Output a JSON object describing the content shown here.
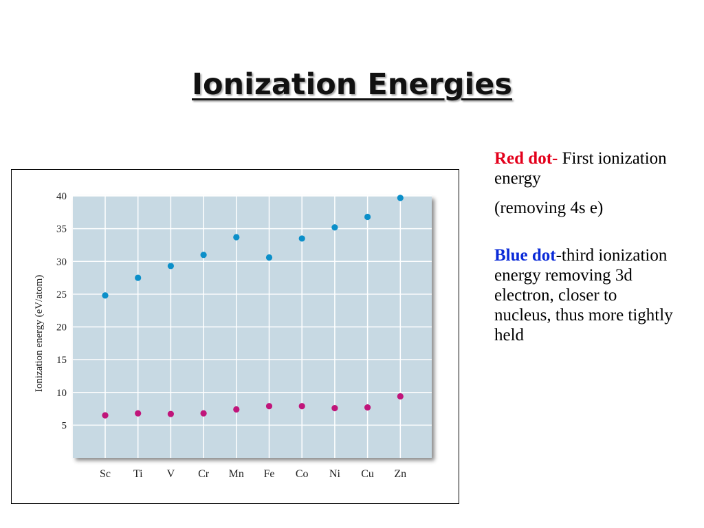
{
  "slide": {
    "title": "Ionization Energies"
  },
  "notes": {
    "red_key": "Red dot-",
    "red_text": " First ionization energy",
    "red_extra": "(removing 4s e)",
    "blue_key": "Blue dot",
    "blue_text": "-third ionization energy removing 3d electron, closer to nucleus, thus more tightly held"
  },
  "chart_data": {
    "type": "scatter",
    "title": "",
    "xlabel": "",
    "ylabel": "Ionization energy (eV/atom)",
    "categories": [
      "Sc",
      "Ti",
      "V",
      "Cr",
      "Mn",
      "Fe",
      "Co",
      "Ni",
      "Cu",
      "Zn"
    ],
    "yticks": [
      5,
      10,
      15,
      20,
      25,
      30,
      35,
      40
    ],
    "ylim": [
      0,
      40
    ],
    "grid": true,
    "legend": "none",
    "plot_background": "#c7d9e3",
    "series": [
      {
        "color": "#c0157a",
        "values": [
          6.5,
          6.8,
          6.7,
          6.8,
          7.4,
          7.9,
          7.9,
          7.6,
          7.7,
          9.4
        ]
      },
      {
        "color": "#0b8fc9",
        "values": [
          24.8,
          27.5,
          29.3,
          31.0,
          33.7,
          30.6,
          33.5,
          35.2,
          36.8,
          39.7
        ]
      }
    ]
  }
}
